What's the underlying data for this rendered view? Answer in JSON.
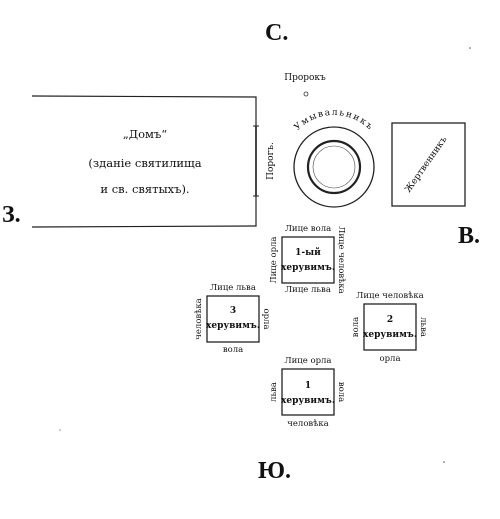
{
  "compass": {
    "north": "С.",
    "south": "Ю.",
    "west": "З.",
    "east": "В."
  },
  "house": {
    "line1": "„Домъ“",
    "line2": "(зданіе святилища",
    "line3": "и св. святыхъ)."
  },
  "threshold": "Порогъ.",
  "prophet": "Пророкъ",
  "laver": "Умывальникъ",
  "altar": "Жертвенникъ",
  "cherubim": [
    {
      "id": "c1",
      "title1": "1-ый",
      "title2": "херувимъ.",
      "top": "Лице вола",
      "bottom": "Лице льва",
      "left": "Лице орла",
      "right": "Лице человѣка"
    },
    {
      "id": "c2",
      "title1": "2",
      "title2": "херувимъ.",
      "top": "Лице человѣка",
      "bottom": "орла",
      "left": "вола",
      "right": "льва"
    },
    {
      "id": "c3",
      "title1": "3",
      "title2": "херувимъ.",
      "top": "Лице льва",
      "bottom": "вола",
      "left": "человѣка",
      "right": "орла"
    },
    {
      "id": "c4",
      "title1": "1",
      "title2": "херувимъ.",
      "top": "Лице орла",
      "bottom": "человѣка",
      "left": "льва",
      "right": "вола"
    }
  ]
}
